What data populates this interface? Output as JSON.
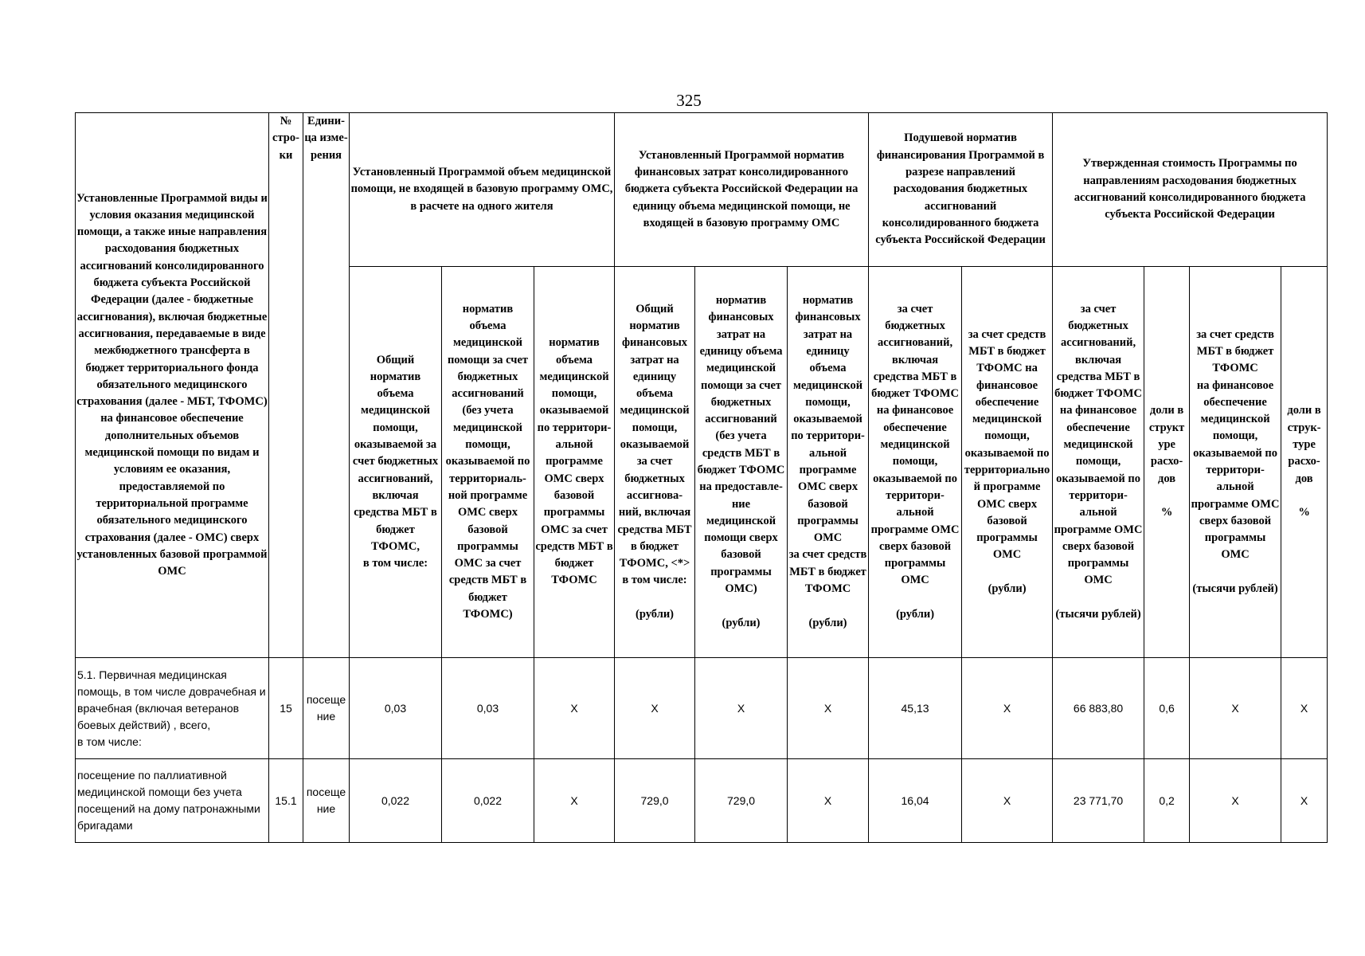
{
  "page_number": "325",
  "header": {
    "col_name": "Установленные Программой виды и условия оказания медицинской помощи, а также иные направления расходования бюджетных ассигнований консолидированного бюджета субъекта Российской Федерации (далее - бюджетные ассигнования), включая бюджетные ассигнования, передаваемые в виде межбюджетного трансферта в бюджет территориального фонда обязательного медицинского страхования (далее - МБТ, ТФОМС) на финансовое обеспечение дополнительных объемов медицинской помощи по видам и условиям ее оказания, предоставляемой по территориальной программе обязательного медицинского страхования (далее - ОМС) сверх установленных базовой программой ОМС",
    "col_row_no": "№ стро-ки",
    "col_unit": "Едини-ца изме-рения",
    "group_volume": "Установленный Программой объем медицинской помощи, не входящей в базовую программу ОМС, в расчете на одного жителя",
    "group_cost_norm": "Установленный Программой норматив финансовых затрат консолидированного бюджета субъекта Российской Федерации на единицу объема медицинской помощи, не входящей в базовую программу ОМС",
    "group_per_capita": "Подушевой норматив финансирования Программой в разрезе направлений расходования бюджетных ассигнований консолидированного бюджета субъекта Российской Федерации",
    "group_cost": "Утвержденная стоимость Программы по направлениям расходования бюджетных ассигнований консолидированного бюджета субъекта Российской Федерации",
    "sub": [
      "Общий норматив объема медицинской помощи, оказываемой за счет бюджетных ассигнований, включая средства МБТ в бюджет ТФОМС,\nв том числе:",
      "норматив объема медицинской помощи за счет бюджетных ассигнований (без учета медицинской помощи, оказываемой по территориаль-ной программе ОМС сверх базовой программы ОМС за счет средств МБТ в бюджет ТФОМС)",
      "норматив объема медицинской помощи, оказываемой по территори-альной программе ОМС сверх базовой программы ОМС за счет средств МБТ в бюджет ТФОМС",
      "Общий норматив финансовых затрат на единицу объема медицинской помощи, оказываемой за счет бюджетных ассигнова-ний, включая средства МБТ\nв бюджет ТФОМС, <*>\nв том числе:\n\n(рубли)",
      "норматив финансовых затрат на единицу объема медицинской помощи за счет бюджетных ассигнований (без учета средств МБТ в бюджет ТФОМС на предоставле-ние медицинской помощи сверх базовой программы ОМС)\n\n(рубли)",
      "норматив финансовых затрат на единицу объема медицинской помощи, оказываемой по территори-альной программе ОМС сверх базовой программы ОМС\nза счет средств МБТ в бюджет ТФОМС\n\n(рубли)",
      "за счет бюджетных ассигнований, включая средства МБТ в бюджет ТФОМС на финансовое обеспечение медицинской помощи, оказываемой по территори-альной программе ОМС сверх базовой программы ОМС\n\n(рубли)",
      "за счет средств МБТ в бюджет ТФОМС на финансовое обеспечение медицинской помощи, оказываемой по территориальной программе ОМС сверх базовой программы ОМС\n\n(рубли)",
      "за счет бюджетных ассигнований, включая средства МБТ в бюджет ТФОМС\nна финансовое обеспечение медицинской помощи, оказываемой по территори-альной программе ОМС сверх базовой программы ОМС\n\n(тысячи рублей)",
      "доли в структ уре расхо-дов\n\n%",
      "за счет средств МБТ в бюджет ТФОМС\nна финансовое обеспечение медицинской помощи, оказываемой по территори-альной программе ОМС сверх базовой программы ОМС\n\n(тысячи рублей)",
      "доли в струк-туре расхо-дов\n\n%"
    ]
  },
  "rows": [
    {
      "name": "5.1. Первичная медицинская помощь, в том числе доврачебная и врачебная (включая ветеранов боевых действий) , всего,\nв том числе:",
      "no": "15",
      "unit": "посеще ние",
      "values": [
        "0,03",
        "0,03",
        "X",
        "X",
        "X",
        "X",
        "45,13",
        "X",
        "66 883,80",
        "0,6",
        "X",
        "X"
      ]
    },
    {
      "name": "посещение по паллиативной медицинской помощи без учета посещений на дому патронажными бригадами",
      "no": "15.1",
      "unit": "посеще ние",
      "values": [
        "0,022",
        "0,022",
        "X",
        "729,0",
        "729,0",
        "X",
        "16,04",
        "X",
        "23 771,70",
        "0,2",
        "X",
        "X"
      ]
    }
  ]
}
